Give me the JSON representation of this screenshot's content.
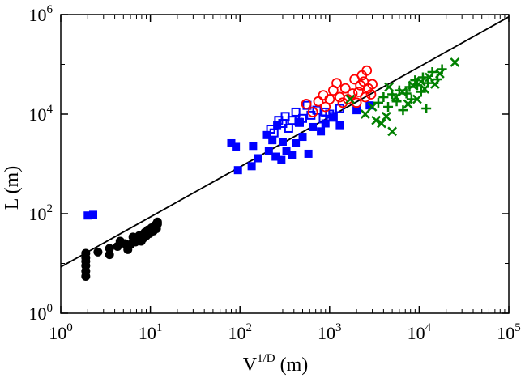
{
  "chart_data": {
    "type": "scatter",
    "title": "",
    "xlabel": "V",
    "xlabel_sup": "1/D",
    "xlabel_unit": " (m)",
    "ylabel": "L (m)",
    "x_scale": "log",
    "y_scale": "log",
    "xlim": [
      1,
      100000
    ],
    "ylim": [
      1,
      1000000
    ],
    "grid": false,
    "legend": "none",
    "x_ticks": [
      {
        "base": "10",
        "exp": "0",
        "value": 1
      },
      {
        "base": "10",
        "exp": "1",
        "value": 10
      },
      {
        "base": "10",
        "exp": "2",
        "value": 100
      },
      {
        "base": "10",
        "exp": "3",
        "value": 1000
      },
      {
        "base": "10",
        "exp": "4",
        "value": 10000
      },
      {
        "base": "10",
        "exp": "5",
        "value": 100000
      }
    ],
    "y_ticks": [
      {
        "base": "10",
        "exp": "0",
        "value": 1
      },
      {
        "base": "10",
        "exp": "2",
        "value": 100
      },
      {
        "base": "10",
        "exp": "4",
        "value": 10000
      },
      {
        "base": "10",
        "exp": "6",
        "value": 1000000
      }
    ],
    "fit_line": {
      "color": "#000000",
      "points": [
        [
          1,
          8.5
        ],
        [
          100000,
          900000
        ]
      ]
    },
    "series": [
      {
        "marker": "filled-circle",
        "color": "#000000",
        "points": [
          [
            1.9,
            5.5
          ],
          [
            1.9,
            7
          ],
          [
            1.9,
            9
          ],
          [
            1.9,
            11
          ],
          [
            1.9,
            13
          ],
          [
            1.9,
            16
          ],
          [
            2.6,
            17
          ],
          [
            3.5,
            15
          ],
          [
            3.5,
            20
          ],
          [
            4.3,
            22
          ],
          [
            4.6,
            28
          ],
          [
            5.2,
            25
          ],
          [
            5.6,
            19
          ],
          [
            6,
            24
          ],
          [
            6.4,
            34
          ],
          [
            6.8,
            27
          ],
          [
            7.1,
            30
          ],
          [
            7.5,
            36
          ],
          [
            7.9,
            28
          ],
          [
            8.3,
            32
          ],
          [
            8.7,
            42
          ],
          [
            9,
            36
          ],
          [
            9.4,
            47
          ],
          [
            9.8,
            40
          ],
          [
            10.3,
            52
          ],
          [
            10.8,
            45
          ],
          [
            11.2,
            58
          ],
          [
            11.7,
            50
          ],
          [
            12,
            62
          ],
          [
            12,
            68
          ]
        ]
      },
      {
        "marker": "filled-square",
        "color": "#0000ff",
        "points": [
          [
            2,
            92
          ],
          [
            2.3,
            95
          ],
          [
            80,
            2600
          ],
          [
            90,
            2200
          ],
          [
            95,
            750
          ],
          [
            135,
            900
          ],
          [
            140,
            2300
          ],
          [
            160,
            1300
          ],
          [
            200,
            3800
          ],
          [
            210,
            1800
          ],
          [
            230,
            3000
          ],
          [
            250,
            1400
          ],
          [
            260,
            6000
          ],
          [
            290,
            1200
          ],
          [
            300,
            2800
          ],
          [
            330,
            1800
          ],
          [
            380,
            1500
          ],
          [
            420,
            2600
          ],
          [
            450,
            7000
          ],
          [
            500,
            3500
          ],
          [
            580,
            1600
          ],
          [
            650,
            5500
          ],
          [
            800,
            4500
          ],
          [
            900,
            6500
          ],
          [
            1100,
            8500
          ],
          [
            1300,
            6000
          ],
          [
            2000,
            12000
          ],
          [
            2800,
            15000
          ]
        ]
      },
      {
        "marker": "open-square",
        "color": "#0000ff",
        "points": [
          [
            220,
            5000
          ],
          [
            240,
            4200
          ],
          [
            270,
            7500
          ],
          [
            300,
            6500
          ],
          [
            320,
            9000
          ],
          [
            350,
            5200
          ],
          [
            380,
            7500
          ],
          [
            420,
            11000
          ],
          [
            460,
            6800
          ],
          [
            500,
            8200
          ],
          [
            560,
            15000
          ],
          [
            620,
            9500
          ],
          [
            720,
            12000
          ],
          [
            850,
            8000
          ],
          [
            900,
            11000
          ],
          [
            1000,
            10000
          ],
          [
            1100,
            9000
          ],
          [
            1300,
            13000
          ]
        ]
      },
      {
        "marker": "open-circle",
        "color": "#ff0000",
        "points": [
          [
            550,
            16000
          ],
          [
            650,
            11000
          ],
          [
            750,
            18000
          ],
          [
            850,
            24000
          ],
          [
            900,
            14000
          ],
          [
            1000,
            20000
          ],
          [
            1100,
            30000
          ],
          [
            1200,
            42000
          ],
          [
            1300,
            22000
          ],
          [
            1400,
            17000
          ],
          [
            1500,
            33000
          ],
          [
            1600,
            20000
          ],
          [
            1800,
            26000
          ],
          [
            1900,
            50000
          ],
          [
            2000,
            17000
          ],
          [
            2100,
            28000
          ],
          [
            2200,
            38000
          ],
          [
            2300,
            60000
          ],
          [
            2400,
            45000
          ],
          [
            2500,
            22000
          ],
          [
            2600,
            75000
          ],
          [
            2700,
            33000
          ],
          [
            2900,
            25000
          ],
          [
            3000,
            40000
          ]
        ]
      },
      {
        "marker": "cross-x",
        "color": "#008000",
        "points": [
          [
            1700,
            20000
          ],
          [
            2500,
            10000
          ],
          [
            3000,
            14000
          ],
          [
            3300,
            7500
          ],
          [
            3800,
            6500
          ],
          [
            4300,
            9000
          ],
          [
            4600,
            35000
          ],
          [
            5000,
            4500
          ],
          [
            5500,
            22000
          ],
          [
            6500,
            28000
          ],
          [
            7500,
            16000
          ],
          [
            8500,
            38000
          ],
          [
            9500,
            20000
          ],
          [
            10500,
            45000
          ],
          [
            11500,
            32000
          ],
          [
            13000,
            55000
          ],
          [
            15000,
            40000
          ],
          [
            17000,
            65000
          ],
          [
            25000,
            110000
          ]
        ]
      },
      {
        "marker": "plus",
        "color": "#008000",
        "points": [
          [
            3500,
            17000
          ],
          [
            4000,
            22000
          ],
          [
            4500,
            14000
          ],
          [
            5000,
            25000
          ],
          [
            5600,
            18000
          ],
          [
            6000,
            30000
          ],
          [
            6600,
            12000
          ],
          [
            7200,
            26000
          ],
          [
            7800,
            35000
          ],
          [
            8200,
            20000
          ],
          [
            9000,
            48000
          ],
          [
            9500,
            38000
          ],
          [
            10500,
            28000
          ],
          [
            11000,
            55000
          ],
          [
            12000,
            13000
          ],
          [
            12500,
            42000
          ],
          [
            14000,
            70000
          ],
          [
            16000,
            50000
          ],
          [
            18000,
            80000
          ]
        ]
      }
    ]
  }
}
